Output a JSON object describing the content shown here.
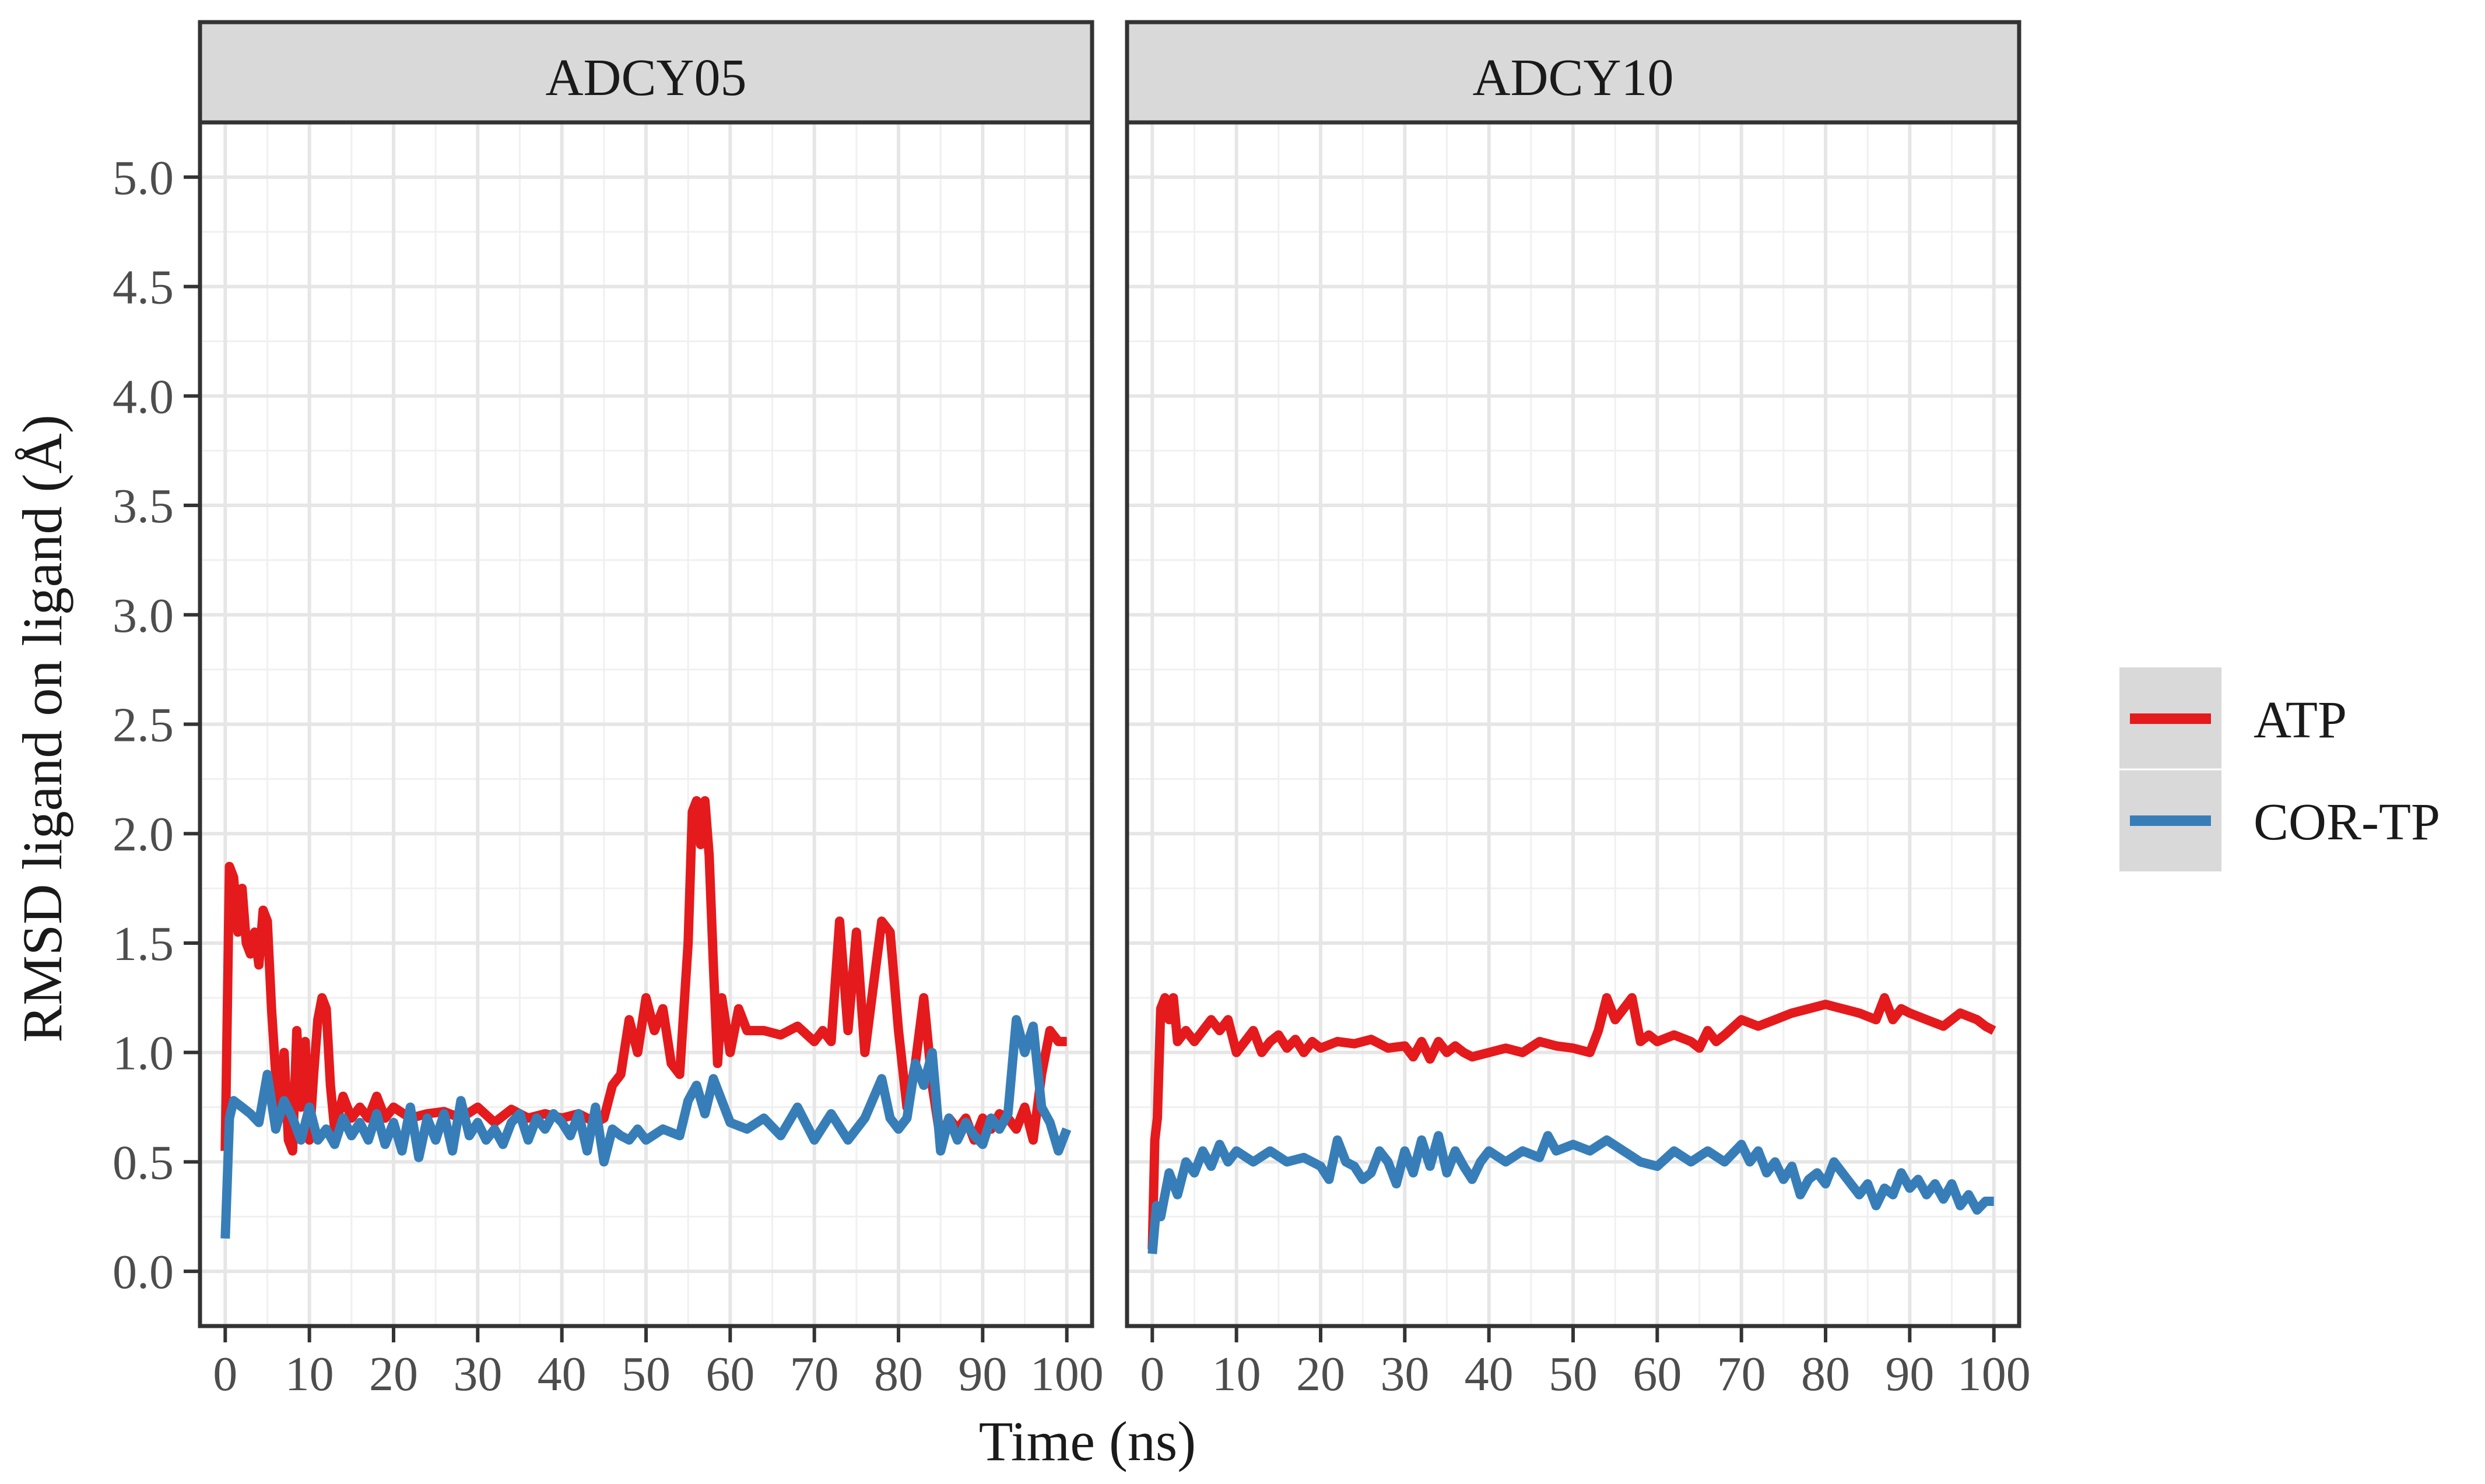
{
  "chart_data": {
    "type": "line",
    "xlabel": "Time (ns)",
    "ylabel": "RMSD ligand on ligand (Å)",
    "xlim": [
      -3,
      103
    ],
    "ylim": [
      -0.25,
      5.25
    ],
    "xticks": [
      0,
      10,
      20,
      30,
      40,
      50,
      60,
      70,
      80,
      90,
      100
    ],
    "xtick_labels": [
      "0",
      "10",
      "20",
      "30",
      "40",
      "50",
      "60",
      "70",
      "80",
      "90",
      "100"
    ],
    "yticks": [
      0.0,
      0.5,
      1.0,
      1.5,
      2.0,
      2.5,
      3.0,
      3.5,
      4.0,
      4.5,
      5.0
    ],
    "ytick_labels": [
      "0.0",
      "0.5",
      "1.0",
      "1.5",
      "2.0",
      "2.5",
      "3.0",
      "3.5",
      "4.0",
      "4.5",
      "5.0"
    ],
    "grid": true,
    "legend_position": "right",
    "colors": {
      "ATP": "#e41a1c",
      "COR-TP": "#377eb8"
    },
    "legend": [
      {
        "name": "ATP",
        "color": "#e41a1c"
      },
      {
        "name": "COR-TP",
        "color": "#377eb8"
      }
    ],
    "panels": [
      {
        "title": "ADCY05",
        "series": [
          {
            "name": "ATP",
            "x": [
              0,
              0.5,
              1,
              1.5,
              2,
              2.5,
              3,
              3.5,
              4,
              4.5,
              5,
              5.5,
              6,
              6.5,
              7,
              7.5,
              8,
              8.5,
              9,
              9.5,
              10,
              10.5,
              11,
              11.5,
              12,
              12.5,
              13,
              14,
              15,
              16,
              17,
              18,
              19,
              20,
              22,
              24,
              26,
              28,
              30,
              32,
              34,
              36,
              38,
              40,
              42,
              44,
              45,
              46,
              47,
              48,
              49,
              50,
              51,
              52,
              53,
              54,
              55,
              55.5,
              56,
              56.5,
              57,
              57.5,
              58,
              58.5,
              59,
              60,
              61,
              62,
              64,
              66,
              68,
              70,
              71,
              72,
              73,
              74,
              75,
              76,
              77,
              78,
              79,
              80,
              81,
              82,
              83,
              84,
              85,
              86,
              87,
              88,
              89,
              90,
              91,
              92,
              93,
              94,
              95,
              96,
              97,
              98,
              99,
              100
            ],
            "values": [
              0.55,
              1.85,
              1.8,
              1.55,
              1.75,
              1.5,
              1.45,
              1.55,
              1.4,
              1.65,
              1.6,
              1.2,
              0.9,
              0.7,
              1.0,
              0.6,
              0.55,
              1.1,
              0.75,
              1.05,
              0.6,
              0.9,
              1.15,
              1.25,
              1.2,
              0.85,
              0.65,
              0.8,
              0.7,
              0.75,
              0.7,
              0.8,
              0.7,
              0.75,
              0.7,
              0.72,
              0.73,
              0.7,
              0.75,
              0.68,
              0.74,
              0.7,
              0.72,
              0.7,
              0.72,
              0.68,
              0.7,
              0.85,
              0.9,
              1.15,
              1.0,
              1.25,
              1.1,
              1.2,
              0.95,
              0.9,
              1.5,
              2.1,
              2.15,
              1.95,
              2.15,
              1.9,
              1.4,
              0.95,
              1.25,
              1.0,
              1.2,
              1.1,
              1.1,
              1.08,
              1.12,
              1.05,
              1.1,
              1.05,
              1.6,
              1.1,
              1.55,
              1.0,
              1.3,
              1.6,
              1.55,
              1.1,
              0.75,
              0.95,
              1.25,
              0.85,
              0.6,
              0.7,
              0.65,
              0.7,
              0.6,
              0.7,
              0.65,
              0.72,
              0.7,
              0.65,
              0.75,
              0.6,
              0.9,
              1.1,
              1.05,
              1.05
            ]
          },
          {
            "name": "COR-TP",
            "x": [
              0,
              0.5,
              1,
              2,
              3,
              4,
              5,
              6,
              7,
              8,
              9,
              10,
              11,
              12,
              13,
              14,
              15,
              16,
              17,
              18,
              19,
              20,
              21,
              22,
              23,
              24,
              25,
              26,
              27,
              28,
              29,
              30,
              31,
              32,
              33,
              34,
              35,
              36,
              37,
              38,
              39,
              40,
              41,
              42,
              43,
              44,
              45,
              46,
              47,
              48,
              49,
              50,
              52,
              54,
              55,
              56,
              57,
              58,
              60,
              62,
              64,
              66,
              68,
              70,
              72,
              74,
              76,
              78,
              79,
              80,
              81,
              82,
              83,
              84,
              85,
              86,
              87,
              88,
              89,
              90,
              91,
              92,
              93,
              94,
              95,
              96,
              97,
              98,
              99,
              100
            ],
            "values": [
              0.15,
              0.7,
              0.78,
              0.75,
              0.72,
              0.68,
              0.9,
              0.65,
              0.78,
              0.7,
              0.6,
              0.75,
              0.6,
              0.65,
              0.58,
              0.7,
              0.62,
              0.68,
              0.6,
              0.72,
              0.58,
              0.68,
              0.55,
              0.75,
              0.52,
              0.7,
              0.6,
              0.72,
              0.55,
              0.78,
              0.62,
              0.68,
              0.6,
              0.65,
              0.58,
              0.68,
              0.72,
              0.6,
              0.7,
              0.65,
              0.72,
              0.68,
              0.62,
              0.72,
              0.55,
              0.75,
              0.5,
              0.65,
              0.62,
              0.6,
              0.65,
              0.6,
              0.65,
              0.62,
              0.78,
              0.85,
              0.72,
              0.88,
              0.68,
              0.65,
              0.7,
              0.62,
              0.75,
              0.6,
              0.72,
              0.6,
              0.7,
              0.88,
              0.7,
              0.65,
              0.7,
              0.95,
              0.85,
              1.0,
              0.55,
              0.7,
              0.6,
              0.68,
              0.62,
              0.58,
              0.7,
              0.65,
              0.72,
              1.15,
              1.0,
              1.12,
              0.75,
              0.68,
              0.55,
              0.65
            ]
          }
        ]
      },
      {
        "title": "ADCY10",
        "series": [
          {
            "name": "ATP",
            "x": [
              0,
              0.3,
              0.6,
              1,
              1.5,
              2,
              2.5,
              3,
              4,
              5,
              6,
              7,
              8,
              9,
              10,
              11,
              12,
              13,
              14,
              15,
              16,
              17,
              18,
              19,
              20,
              22,
              24,
              26,
              28,
              30,
              31,
              32,
              33,
              34,
              35,
              36,
              37,
              38,
              40,
              42,
              44,
              46,
              48,
              50,
              52,
              53,
              54,
              55,
              56,
              57,
              58,
              59,
              60,
              62,
              64,
              65,
              66,
              67,
              68,
              70,
              72,
              74,
              76,
              78,
              80,
              82,
              84,
              86,
              87,
              88,
              89,
              90,
              92,
              94,
              96,
              98,
              99,
              100
            ],
            "values": [
              0.1,
              0.6,
              0.7,
              1.2,
              1.25,
              1.15,
              1.25,
              1.05,
              1.1,
              1.05,
              1.1,
              1.15,
              1.1,
              1.15,
              1.0,
              1.05,
              1.1,
              1.0,
              1.05,
              1.08,
              1.02,
              1.06,
              1.0,
              1.05,
              1.02,
              1.05,
              1.04,
              1.06,
              1.02,
              1.03,
              0.98,
              1.05,
              0.97,
              1.05,
              1.0,
              1.03,
              1.0,
              0.98,
              1.0,
              1.02,
              1.0,
              1.05,
              1.03,
              1.02,
              1.0,
              1.1,
              1.25,
              1.15,
              1.2,
              1.25,
              1.05,
              1.08,
              1.05,
              1.08,
              1.05,
              1.02,
              1.1,
              1.05,
              1.08,
              1.15,
              1.12,
              1.15,
              1.18,
              1.2,
              1.22,
              1.2,
              1.18,
              1.15,
              1.25,
              1.15,
              1.2,
              1.18,
              1.15,
              1.12,
              1.18,
              1.15,
              1.12,
              1.1
            ]
          },
          {
            "name": "COR-TP",
            "x": [
              0,
              0.5,
              1,
              2,
              3,
              4,
              5,
              6,
              7,
              8,
              9,
              10,
              12,
              14,
              16,
              18,
              20,
              21,
              22,
              23,
              24,
              25,
              26,
              27,
              28,
              29,
              30,
              31,
              32,
              33,
              34,
              35,
              36,
              37,
              38,
              39,
              40,
              42,
              44,
              46,
              47,
              48,
              50,
              52,
              54,
              56,
              58,
              60,
              62,
              64,
              66,
              68,
              70,
              71,
              72,
              73,
              74,
              75,
              76,
              77,
              78,
              79,
              80,
              81,
              82,
              83,
              84,
              85,
              86,
              87,
              88,
              89,
              90,
              91,
              92,
              93,
              94,
              95,
              96,
              97,
              98,
              99,
              100
            ],
            "values": [
              0.08,
              0.3,
              0.25,
              0.45,
              0.35,
              0.5,
              0.45,
              0.55,
              0.48,
              0.58,
              0.5,
              0.55,
              0.5,
              0.55,
              0.5,
              0.52,
              0.48,
              0.42,
              0.6,
              0.5,
              0.48,
              0.42,
              0.45,
              0.55,
              0.5,
              0.4,
              0.55,
              0.45,
              0.6,
              0.48,
              0.62,
              0.45,
              0.55,
              0.48,
              0.42,
              0.5,
              0.55,
              0.5,
              0.55,
              0.52,
              0.62,
              0.55,
              0.58,
              0.55,
              0.6,
              0.55,
              0.5,
              0.48,
              0.55,
              0.5,
              0.55,
              0.5,
              0.58,
              0.5,
              0.55,
              0.45,
              0.5,
              0.42,
              0.48,
              0.35,
              0.42,
              0.45,
              0.4,
              0.5,
              0.45,
              0.4,
              0.35,
              0.4,
              0.3,
              0.38,
              0.35,
              0.45,
              0.38,
              0.42,
              0.35,
              0.4,
              0.33,
              0.4,
              0.3,
              0.35,
              0.28,
              0.32,
              0.32
            ]
          }
        ]
      }
    ]
  }
}
